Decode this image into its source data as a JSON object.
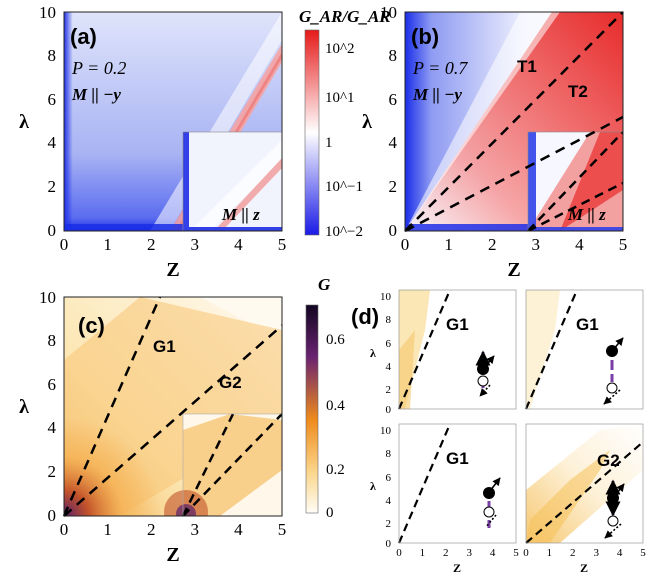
{
  "chart_data": [
    {
      "type": "heatmap",
      "panel_label": "(a)",
      "xlabel": "Z",
      "ylabel": "λ",
      "xlim": [
        0,
        5
      ],
      "ylim": [
        0,
        10
      ],
      "x_ticks": [
        "0",
        "1",
        "2",
        "3",
        "4",
        "5"
      ],
      "y_ticks": [
        "0",
        "2",
        "4",
        "6",
        "8",
        "10"
      ],
      "annotations": [
        "P = 0.2",
        "M || −y"
      ],
      "inset_label": "M || z",
      "colorscale": "blue-white-red (log)"
    },
    {
      "type": "heatmap",
      "panel_label": "(b)",
      "xlabel": "Z",
      "ylabel": "λ",
      "xlim": [
        0,
        5
      ],
      "ylim": [
        0,
        10
      ],
      "x_ticks": [
        "0",
        "1",
        "2",
        "3",
        "4",
        "5"
      ],
      "y_ticks": [
        "0",
        "2",
        "4",
        "6",
        "8",
        "10"
      ],
      "annotations": [
        "P = 0.7",
        "M || −y"
      ],
      "regions": [
        "T1",
        "T2"
      ],
      "dashed_lines": [
        {
          "x": [
            0,
            5
          ],
          "y": [
            0,
            10
          ]
        },
        {
          "x": [
            0,
            5
          ],
          "y": [
            0,
            5.2
          ]
        }
      ],
      "inset_label": "M || z",
      "colorscale": "blue-white-red (log)"
    },
    {
      "type": "heatmap",
      "panel_label": "(c)",
      "xlabel": "Z",
      "ylabel": "λ",
      "xlim": [
        0,
        5
      ],
      "ylim": [
        0,
        10
      ],
      "x_ticks": [
        "0",
        "1",
        "2",
        "3",
        "4",
        "5"
      ],
      "y_ticks": [
        "0",
        "2",
        "4",
        "6",
        "8",
        "10"
      ],
      "regions": [
        "G1",
        "G2"
      ],
      "dashed_lines": [
        {
          "x": [
            0,
            2.2
          ],
          "y": [
            0,
            10
          ]
        },
        {
          "x": [
            0,
            5
          ],
          "y": [
            0,
            8.7
          ]
        }
      ],
      "colorscale": "white-orange-purple-black"
    },
    {
      "type": "heatmap",
      "panel_label": "(d)",
      "subpanels": [
        {
          "region": "G1",
          "position": "top-left",
          "xlabel": "",
          "ylabel": "λ",
          "x_ticks": [],
          "y_ticks": [
            "0",
            "2",
            "4",
            "6",
            "8",
            "10"
          ]
        },
        {
          "region": "G1",
          "position": "top-right",
          "xlabel": "",
          "ylabel": "",
          "x_ticks": [],
          "y_ticks": []
        },
        {
          "region": "G1",
          "position": "bottom-left",
          "xlabel": "Z",
          "ylabel": "λ",
          "x_ticks": [
            "0",
            "1",
            "2",
            "3",
            "4",
            "5"
          ],
          "y_ticks": [
            "0",
            "2",
            "4",
            "6",
            "8",
            "10"
          ]
        },
        {
          "region": "G2",
          "position": "bottom-right",
          "xlabel": "Z",
          "ylabel": "",
          "x_ticks": [
            "0",
            "1",
            "2",
            "3",
            "4",
            "5"
          ],
          "y_ticks": []
        }
      ]
    }
  ],
  "colorbar_top": {
    "title": "G_AR/G_AR",
    "ticks": [
      "10^2",
      "10^1",
      "1",
      "10^−1",
      "10^−2"
    ],
    "colors": [
      "#e61a1a",
      "#ffffff",
      "#1a1ae6"
    ]
  },
  "colorbar_bottom": {
    "title": "G",
    "ticks": [
      "0.6",
      "0.4",
      "0.2",
      "0"
    ],
    "colors": [
      "#1a0a2e",
      "#7a2a7a",
      "#f39a1a",
      "#ffffff"
    ]
  }
}
